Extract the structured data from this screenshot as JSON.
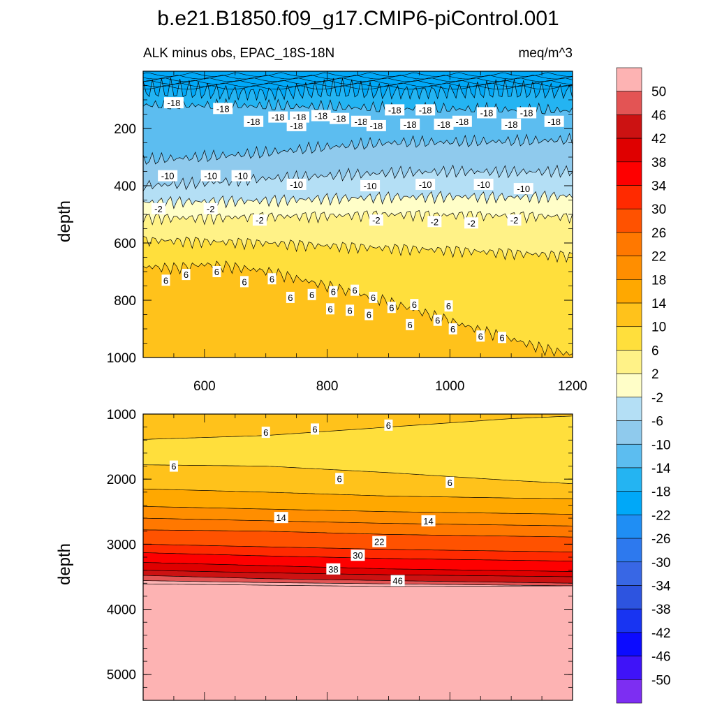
{
  "figure": {
    "title": "b.e21.B1850.f09_g17.CMIP6-piControl.001",
    "left_string": "ALK minus obs, EPAC_18S-18N",
    "right_string": "meq/m^3"
  },
  "chart_data": [
    {
      "type": "heatmap",
      "name": "upper-panel",
      "title": "ALK minus obs, EPAC_18S-18N",
      "units": "meq/m^3",
      "xlabel": "",
      "ylabel": "depth",
      "xlim": [
        500,
        1200
      ],
      "ylim": [
        0,
        1000
      ],
      "y_inverted": true,
      "xticks": [
        600,
        800,
        1000,
        1200
      ],
      "yticks": [
        200,
        400,
        600,
        800,
        1000
      ],
      "bands": [
        {
          "value": -22,
          "top": [
            [
              500,
              0
            ],
            [
              1200,
              0
            ]
          ]
        },
        {
          "value": -18,
          "top": [
            [
              500,
              20
            ],
            [
              600,
              25
            ],
            [
              700,
              28
            ],
            [
              800,
              22
            ],
            [
              900,
              25
            ],
            [
              1000,
              22
            ],
            [
              1100,
              25
            ],
            [
              1200,
              22
            ]
          ]
        },
        {
          "value": -14,
          "top": [
            [
              500,
              118
            ],
            [
              600,
              120
            ],
            [
              700,
              122
            ],
            [
              800,
              125
            ],
            [
              900,
              130
            ],
            [
              1000,
              132
            ],
            [
              1100,
              135
            ],
            [
              1200,
              138
            ]
          ]
        },
        {
          "value": -10,
          "top": [
            [
              500,
              310
            ],
            [
              600,
              300
            ],
            [
              700,
              285
            ],
            [
              800,
              265
            ],
            [
              900,
              250
            ],
            [
              1000,
              248
            ],
            [
              1100,
              245
            ],
            [
              1200,
              240
            ]
          ]
        },
        {
          "value": -6,
          "top": [
            [
              500,
              400
            ],
            [
              600,
              390
            ],
            [
              700,
              375
            ],
            [
              800,
              365
            ],
            [
              900,
              355
            ],
            [
              1000,
              350
            ],
            [
              1100,
              352
            ],
            [
              1200,
              350
            ]
          ]
        },
        {
          "value": -2,
          "top": [
            [
              500,
              458
            ],
            [
              600,
              455
            ],
            [
              700,
              452
            ],
            [
              800,
              445
            ],
            [
              900,
              440
            ],
            [
              1000,
              438
            ],
            [
              1100,
              440
            ],
            [
              1200,
              435
            ]
          ]
        },
        {
          "value": 2,
          "top": [
            [
              500,
              512
            ],
            [
              600,
              512
            ],
            [
              700,
              508
            ],
            [
              800,
              505
            ],
            [
              900,
              500
            ],
            [
              1000,
              502
            ],
            [
              1100,
              505
            ],
            [
              1200,
              508
            ]
          ]
        },
        {
          "value": 6,
          "top": [
            [
              500,
              590
            ],
            [
              600,
              595
            ],
            [
              700,
              600
            ],
            [
              800,
              610
            ],
            [
              900,
              618
            ],
            [
              1000,
              625
            ],
            [
              1100,
              635
            ],
            [
              1200,
              645
            ]
          ]
        },
        {
          "value": 10,
          "top": [
            [
              500,
              682
            ],
            [
              550,
              688
            ],
            [
              600,
              675
            ],
            [
              650,
              685
            ],
            [
              700,
              698
            ],
            [
              800,
              750
            ],
            [
              900,
              805
            ],
            [
              1000,
              872
            ],
            [
              1050,
              905
            ],
            [
              1100,
              935
            ],
            [
              1150,
              968
            ],
            [
              1200,
              990
            ]
          ]
        }
      ],
      "contour_labels": [
        {
          "text": "-18",
          "x": 550,
          "y": 110
        },
        {
          "text": "-18",
          "x": 630,
          "y": 130
        },
        {
          "text": "-18",
          "x": 680,
          "y": 175
        },
        {
          "text": "-18",
          "x": 720,
          "y": 160
        },
        {
          "text": "-18",
          "x": 755,
          "y": 160
        },
        {
          "text": "-18",
          "x": 790,
          "y": 155
        },
        {
          "text": "-18",
          "x": 820,
          "y": 165
        },
        {
          "text": "-18",
          "x": 855,
          "y": 175
        },
        {
          "text": "-18",
          "x": 910,
          "y": 135
        },
        {
          "text": "-18",
          "x": 960,
          "y": 135
        },
        {
          "text": "-18",
          "x": 1020,
          "y": 175
        },
        {
          "text": "-18",
          "x": 1060,
          "y": 145
        },
        {
          "text": "-18",
          "x": 1125,
          "y": 145
        },
        {
          "text": "-18",
          "x": 1170,
          "y": 175
        },
        {
          "text": "-18",
          "x": 750,
          "y": 190
        },
        {
          "text": "-18",
          "x": 880,
          "y": 190
        },
        {
          "text": "-18",
          "x": 935,
          "y": 185
        },
        {
          "text": "-18",
          "x": 990,
          "y": 185
        },
        {
          "text": "-18",
          "x": 1100,
          "y": 185
        },
        {
          "text": "-10",
          "x": 540,
          "y": 365
        },
        {
          "text": "-10",
          "x": 610,
          "y": 365
        },
        {
          "text": "-10",
          "x": 660,
          "y": 365
        },
        {
          "text": "-10",
          "x": 750,
          "y": 395
        },
        {
          "text": "-10",
          "x": 870,
          "y": 400
        },
        {
          "text": "-10",
          "x": 960,
          "y": 395
        },
        {
          "text": "-10",
          "x": 1055,
          "y": 395
        },
        {
          "text": "-10",
          "x": 1120,
          "y": 410
        },
        {
          "text": "-2",
          "x": 525,
          "y": 480
        },
        {
          "text": "-2",
          "x": 610,
          "y": 480
        },
        {
          "text": "-2",
          "x": 690,
          "y": 520
        },
        {
          "text": "-2",
          "x": 880,
          "y": 520
        },
        {
          "text": "-2",
          "x": 975,
          "y": 525
        },
        {
          "text": "-2",
          "x": 1035,
          "y": 530
        },
        {
          "text": "-2",
          "x": 1105,
          "y": 520
        },
        {
          "text": "6",
          "x": 537,
          "y": 730
        },
        {
          "text": "6",
          "x": 570,
          "y": 710
        },
        {
          "text": "6",
          "x": 620,
          "y": 700
        },
        {
          "text": "6",
          "x": 665,
          "y": 735
        },
        {
          "text": "6",
          "x": 710,
          "y": 725
        },
        {
          "text": "6",
          "x": 740,
          "y": 790
        },
        {
          "text": "6",
          "x": 775,
          "y": 780
        },
        {
          "text": "6",
          "x": 810,
          "y": 770
        },
        {
          "text": "6",
          "x": 845,
          "y": 765
        },
        {
          "text": "6",
          "x": 875,
          "y": 790
        },
        {
          "text": "6",
          "x": 805,
          "y": 830
        },
        {
          "text": "6",
          "x": 837,
          "y": 835
        },
        {
          "text": "6",
          "x": 868,
          "y": 850
        },
        {
          "text": "6",
          "x": 905,
          "y": 825
        },
        {
          "text": "6",
          "x": 942,
          "y": 815
        },
        {
          "text": "6",
          "x": 998,
          "y": 820
        },
        {
          "text": "6",
          "x": 935,
          "y": 885
        },
        {
          "text": "6",
          "x": 980,
          "y": 870
        },
        {
          "text": "6",
          "x": 1005,
          "y": 900
        },
        {
          "text": "6",
          "x": 1050,
          "y": 925
        },
        {
          "text": "6",
          "x": 1085,
          "y": 930
        }
      ]
    },
    {
      "type": "heatmap",
      "name": "lower-panel",
      "xlabel": "",
      "ylabel": "depth",
      "xlim": [
        500,
        1200
      ],
      "ylim": [
        1000,
        5400
      ],
      "y_inverted": true,
      "yticks": [
        1000,
        2000,
        3000,
        4000,
        5000
      ],
      "bands": [
        {
          "value": 10,
          "top": [
            [
              500,
              1000
            ],
            [
              1200,
              1000
            ]
          ]
        },
        {
          "value": 6,
          "top": [
            [
              500,
              1390
            ],
            [
              700,
              1330
            ],
            [
              900,
              1200
            ],
            [
              1100,
              1070
            ],
            [
              1200,
              1030
            ]
          ]
        },
        {
          "value": 10,
          "top": [
            [
              500,
              1780
            ],
            [
              700,
              1800
            ],
            [
              900,
              1900
            ],
            [
              1100,
              2020
            ],
            [
              1200,
              2070
            ]
          ]
        },
        {
          "value": 14,
          "top": [
            [
              500,
              2150
            ],
            [
              700,
              2200
            ],
            [
              900,
              2260
            ],
            [
              1100,
              2290
            ],
            [
              1200,
              2300
            ]
          ]
        },
        {
          "value": 18,
          "top": [
            [
              500,
              2420
            ],
            [
              700,
              2460
            ],
            [
              900,
              2500
            ],
            [
              1200,
              2540
            ]
          ]
        },
        {
          "value": 22,
          "top": [
            [
              500,
              2600
            ],
            [
              700,
              2640
            ],
            [
              900,
              2680
            ],
            [
              1200,
              2720
            ]
          ]
        },
        {
          "value": 26,
          "top": [
            [
              500,
              2780
            ],
            [
              700,
              2800
            ],
            [
              900,
              2850
            ],
            [
              1200,
              2890
            ]
          ]
        },
        {
          "value": 30,
          "top": [
            [
              500,
              3000
            ],
            [
              700,
              3040
            ],
            [
              900,
              3080
            ],
            [
              1200,
              3120
            ]
          ]
        },
        {
          "value": 34,
          "top": [
            [
              500,
              3130
            ],
            [
              700,
              3180
            ],
            [
              900,
              3220
            ],
            [
              1200,
              3260
            ]
          ]
        },
        {
          "value": 38,
          "top": [
            [
              500,
              3280
            ],
            [
              700,
              3330
            ],
            [
              900,
              3380
            ],
            [
              1200,
              3420
            ]
          ]
        },
        {
          "value": 42,
          "top": [
            [
              500,
              3400
            ],
            [
              700,
              3440
            ],
            [
              900,
              3470
            ],
            [
              1200,
              3500
            ]
          ]
        },
        {
          "value": 46,
          "top": [
            [
              500,
              3480
            ],
            [
              700,
              3530
            ],
            [
              900,
              3560
            ],
            [
              1200,
              3600
            ]
          ]
        },
        {
          "value": 50,
          "top": [
            [
              500,
              3560
            ],
            [
              700,
              3590
            ],
            [
              900,
              3610
            ],
            [
              1200,
              3640
            ]
          ]
        },
        {
          "value": 54,
          "top": [
            [
              500,
              3610
            ],
            [
              700,
              3630
            ],
            [
              900,
              3650
            ],
            [
              1200,
              3640
            ]
          ]
        }
      ],
      "contour_labels": [
        {
          "text": "6",
          "x": 700,
          "y": 1280
        },
        {
          "text": "6",
          "x": 780,
          "y": 1230
        },
        {
          "text": "6",
          "x": 900,
          "y": 1170
        },
        {
          "text": "6",
          "x": 550,
          "y": 1800
        },
        {
          "text": "6",
          "x": 820,
          "y": 1990
        },
        {
          "text": "6",
          "x": 1000,
          "y": 2050
        },
        {
          "text": "14",
          "x": 725,
          "y": 2590
        },
        {
          "text": "14",
          "x": 965,
          "y": 2640
        },
        {
          "text": "22",
          "x": 885,
          "y": 2960
        },
        {
          "text": "30",
          "x": 850,
          "y": 3170
        },
        {
          "text": "38",
          "x": 810,
          "y": 3380
        },
        {
          "text": "46",
          "x": 915,
          "y": 3560
        }
      ]
    }
  ],
  "colorbar": {
    "labels": [
      "50",
      "46",
      "42",
      "38",
      "34",
      "30",
      "26",
      "22",
      "18",
      "14",
      "10",
      "6",
      "2",
      "-2",
      "-6",
      "-10",
      "-14",
      "-18",
      "-22",
      "-26",
      "-30",
      "-34",
      "-38",
      "-42",
      "-46",
      "-50"
    ],
    "colors": [
      "#fdb3b3",
      "#e35454",
      "#cc1212",
      "#df0000",
      "#fe0000",
      "#ff2a00",
      "#ff5200",
      "#ff7800",
      "#ff8e00",
      "#ffa800",
      "#ffc21b",
      "#ffdf3c",
      "#fff287",
      "#fffec8",
      "#b4dff5",
      "#8fcaed",
      "#5cbdf0",
      "#24b4f2",
      "#00a8f8",
      "#1f8ef4",
      "#2d79ee",
      "#3867e5",
      "#2d54e0",
      "#1834f2",
      "#0c0bff",
      "#3f13f8",
      "#7d2ef2"
    ]
  },
  "icons": {
    "upper_panel": "filled-contour",
    "lower_panel": "filled-contour",
    "legend": "colorbar"
  }
}
